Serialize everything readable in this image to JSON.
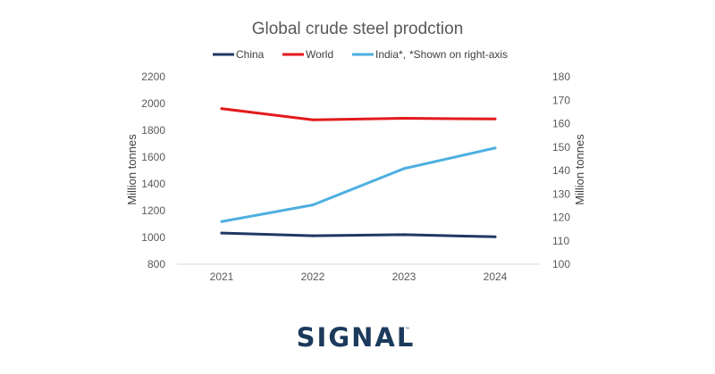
{
  "chart_data": {
    "type": "line",
    "title": "Global crude steel prodction",
    "categories": [
      "2021",
      "2022",
      "2023",
      "2024"
    ],
    "ylabel_left": "Million tonnes",
    "ylabel_right": "Million tonnes",
    "ylim_left": [
      800,
      2200
    ],
    "ylim_right": [
      100,
      180
    ],
    "yticks_left": [
      "800",
      "1000",
      "1200",
      "1400",
      "1600",
      "1800",
      "2000",
      "2200"
    ],
    "yticks_right": [
      "100",
      "110",
      "120",
      "130",
      "140",
      "150",
      "160",
      "170",
      "180"
    ],
    "grid": false,
    "legend_position": "top",
    "legend_note": "*Shown on right-axis",
    "series": [
      {
        "name": "China",
        "axis": "left",
        "color": "#1f3864",
        "values": [
          1033,
          1013,
          1021,
          1005
        ]
      },
      {
        "name": "World",
        "axis": "left",
        "color": "#e31a1c",
        "values": [
          1962,
          1878,
          1890,
          1885
        ]
      },
      {
        "name": "India*,",
        "axis": "right",
        "color": "#4dafe0",
        "values": [
          118.2,
          125.3,
          140.8,
          149.6
        ]
      }
    ]
  },
  "logo": {
    "text": "SIGNAL",
    "mark": "™",
    "color": "#1b3a5c"
  }
}
